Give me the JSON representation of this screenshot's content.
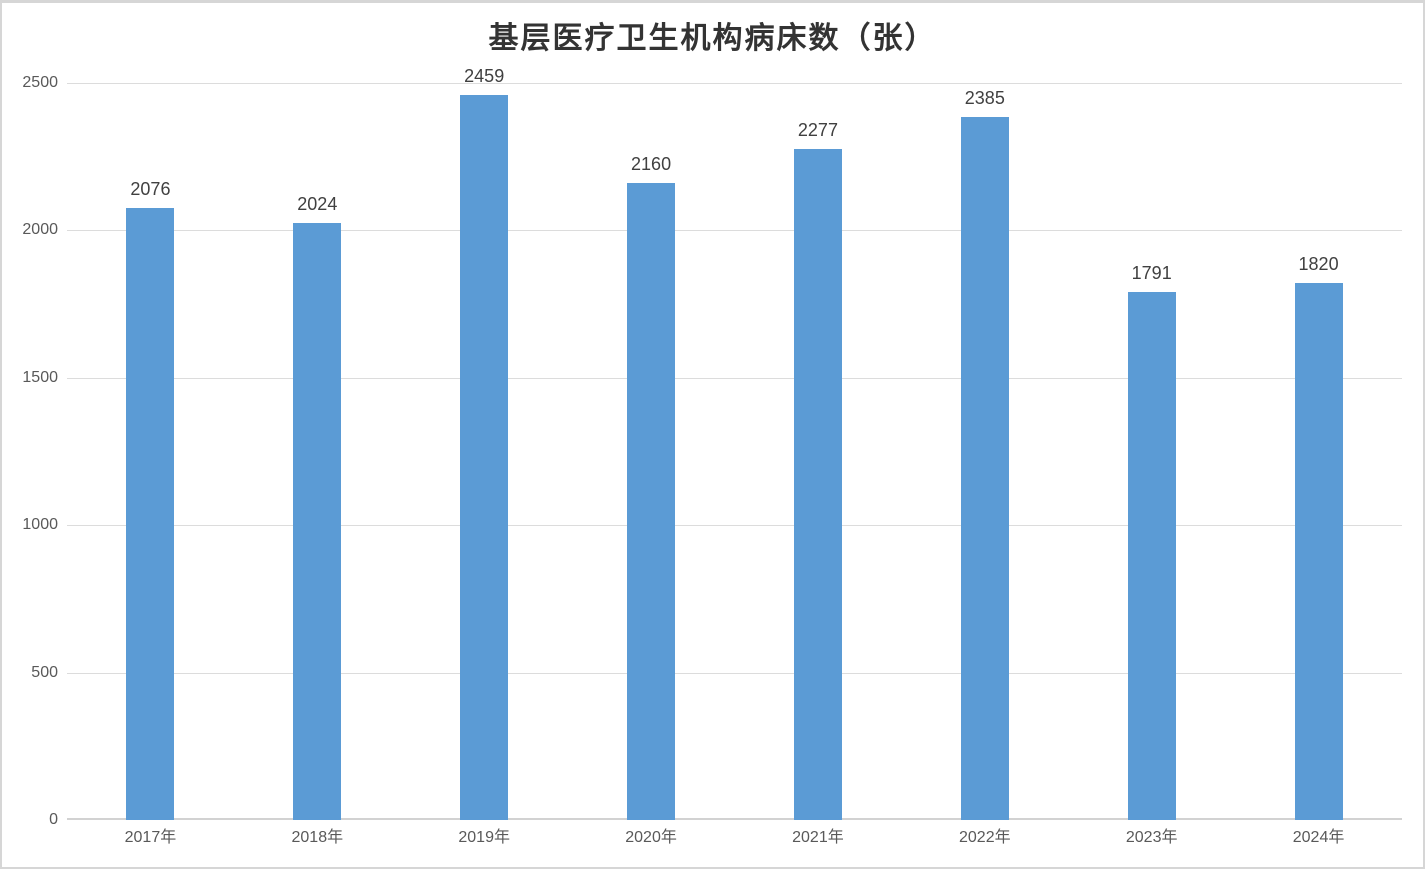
{
  "chart_data": {
    "type": "bar",
    "title": "基层医疗卫生机构病床数（张）",
    "categories": [
      "2017年",
      "2018年",
      "2019年",
      "2020年",
      "2021年",
      "2022年",
      "2023年",
      "2024年"
    ],
    "values": [
      2076,
      2024,
      2459,
      2160,
      2277,
      2385,
      1791,
      1820
    ],
    "xlabel": "",
    "ylabel": "",
    "ylim": [
      0,
      2500
    ],
    "yticks": [
      0,
      500,
      1000,
      1500,
      2000,
      2500
    ],
    "grid": true,
    "legend_position": "none",
    "data_labels": true,
    "colors": {
      "bar_fill": "#5B9BD5",
      "gridline": "#DCDCDC",
      "axis_line": "#D2D2D2",
      "title_text": "#333333",
      "axis_text": "#595959",
      "data_label_text": "#404040",
      "background": "#FFFFFF",
      "border": "#D6D6D6"
    }
  }
}
